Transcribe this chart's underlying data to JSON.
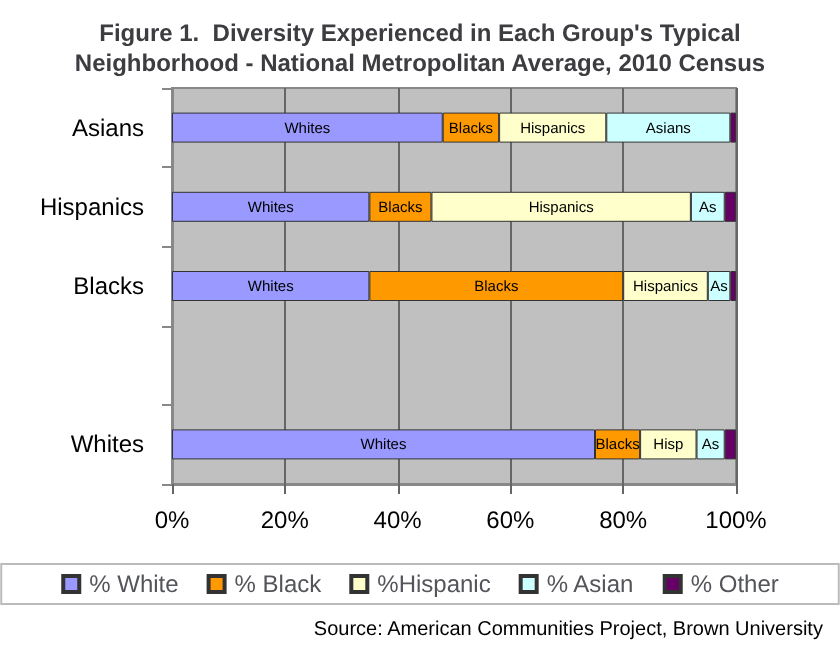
{
  "chart_data": {
    "type": "bar",
    "orientation": "horizontal",
    "stacked": true,
    "title": "Figure 1.  Diversity Experienced in Each Group's Typical\nNeighborhood - National Metropolitan Average, 2010 Census",
    "categories": [
      "Asians",
      "Hispanics",
      "Blacks",
      null,
      "Whites"
    ],
    "series": [
      {
        "name": "% White",
        "color": "#9999ff",
        "values": [
          48,
          35,
          35,
          null,
          75
        ],
        "value_labels": [
          "Whites",
          "Whites",
          "Whites",
          null,
          "Whites"
        ]
      },
      {
        "name": "% Black",
        "color": "#ff9900",
        "values": [
          10,
          11,
          45,
          null,
          8
        ],
        "value_labels": [
          "Blacks",
          "Blacks",
          "Blacks",
          null,
          "Blacks"
        ]
      },
      {
        "name": "%Hispanic",
        "color": "#ffffcc",
        "values": [
          19,
          46,
          15,
          null,
          10
        ],
        "value_labels": [
          "Hispanics",
          "Hispanics",
          "Hispanics",
          null,
          "Hisp"
        ]
      },
      {
        "name": "% Asian",
        "color": "#ccffff",
        "values": [
          22,
          6,
          4,
          null,
          5
        ],
        "value_labels": [
          "Asians",
          "As",
          "As",
          null,
          "As"
        ]
      },
      {
        "name": "% Other",
        "color": "#660066",
        "values": [
          1,
          2,
          1,
          null,
          2
        ]
      }
    ],
    "xlim": [
      0,
      100
    ],
    "xticks": [
      {
        "value": 0,
        "label": "0%"
      },
      {
        "value": 20,
        "label": "20%"
      },
      {
        "value": 40,
        "label": "40%"
      },
      {
        "value": 60,
        "label": "60%"
      },
      {
        "value": 80,
        "label": "80%"
      },
      {
        "value": 100,
        "label": "100%"
      }
    ],
    "grid": "x",
    "legend": "bottom",
    "annotations": [
      "Source: American Communities Project, Brown University"
    ]
  }
}
